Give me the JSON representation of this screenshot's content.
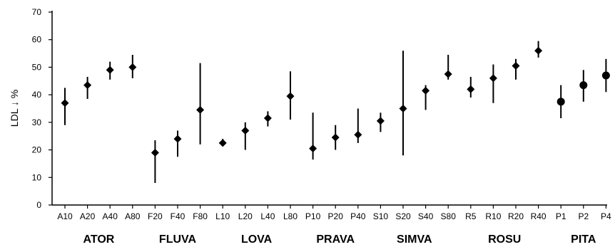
{
  "chart_data": {
    "type": "scatter",
    "ylabel": "LDL ↓ %",
    "ylim": [
      0,
      70
    ],
    "yticks": [
      0,
      10,
      20,
      30,
      40,
      50,
      60,
      70
    ],
    "categories": [
      "A10",
      "A20",
      "A40",
      "A80",
      "F20",
      "F40",
      "F80",
      "L10",
      "L20",
      "L40",
      "L80",
      "P10",
      "P20",
      "P40",
      "S10",
      "S20",
      "S40",
      "S80",
      "R5",
      "R10",
      "R20",
      "R40",
      "P1",
      "P2",
      "P4"
    ],
    "values": [
      37,
      43.5,
      49,
      50,
      19,
      24,
      34.5,
      22.5,
      27,
      31.5,
      39.5,
      20.5,
      24.5,
      25.5,
      30.5,
      35,
      41.5,
      47.5,
      42,
      46,
      50.5,
      56,
      37.5,
      43.5,
      47
    ],
    "low": [
      29,
      38.5,
      45.5,
      46,
      8,
      17.5,
      22,
      21.5,
      20,
      28.5,
      31,
      16.5,
      20,
      22.5,
      26.5,
      18,
      34.5,
      45.5,
      39,
      37,
      45.5,
      53.5,
      31.5,
      37.5,
      41
    ],
    "high": [
      42.5,
      46.5,
      52,
      54.5,
      23.5,
      27,
      51.5,
      24,
      30,
      34,
      48.5,
      33.5,
      29,
      35,
      33.5,
      56,
      43.5,
      54.5,
      46.5,
      51,
      53,
      59.5,
      43.5,
      49,
      53
    ],
    "markers": [
      "diamond",
      "diamond",
      "diamond",
      "diamond",
      "diamond",
      "diamond",
      "diamond",
      "diamond",
      "diamond",
      "diamond",
      "diamond",
      "diamond",
      "diamond",
      "diamond",
      "diamond",
      "diamond",
      "diamond",
      "diamond",
      "diamond",
      "diamond",
      "diamond",
      "diamond",
      "circle",
      "circle",
      "circle"
    ],
    "groups": [
      {
        "label": "ATOR",
        "start": 0,
        "end": 3
      },
      {
        "label": "FLUVA",
        "start": 4,
        "end": 6
      },
      {
        "label": "LOVA",
        "start": 7,
        "end": 10
      },
      {
        "label": "PRAVA",
        "start": 11,
        "end": 13
      },
      {
        "label": "SIMVA",
        "start": 14,
        "end": 17
      },
      {
        "label": "ROSU",
        "start": 18,
        "end": 21
      },
      {
        "label": "PITA",
        "start": 22,
        "end": 24
      }
    ]
  }
}
